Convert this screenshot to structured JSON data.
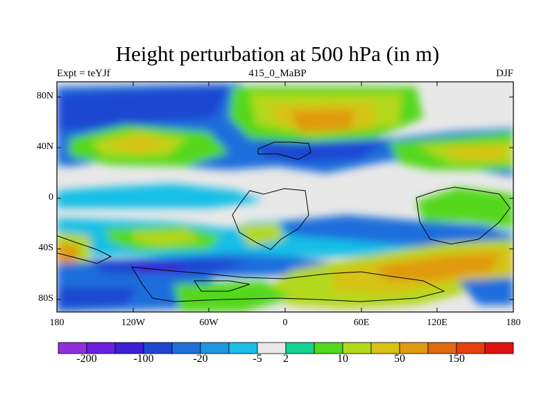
{
  "title": "Height perturbation at 500 hPa (in m)",
  "subtitle_left": "Expt = teYJf",
  "subtitle_center": "415_0_MaBP",
  "subtitle_right": "DJF",
  "map": {
    "lat_labels": [
      "80N",
      "40N",
      "0",
      "40S",
      "80S"
    ],
    "lon_labels": [
      "180",
      "120W",
      "60W",
      "0",
      "60E",
      "120E",
      "180"
    ]
  },
  "colorbar": {
    "colors": [
      "#8f2fdc",
      "#6b1fe0",
      "#3b20d6",
      "#1f46d2",
      "#1f6edc",
      "#1f96e0",
      "#19bfe6",
      "#e8e8e8",
      "#12d38f",
      "#55d81d",
      "#b4d81a",
      "#d6c314",
      "#e09a10",
      "#e06a0e",
      "#e5400d",
      "#e01010"
    ],
    "tick_labels": [
      "-200",
      "-100",
      "-20",
      "-5",
      "2",
      "10",
      "50",
      "150"
    ]
  }
}
